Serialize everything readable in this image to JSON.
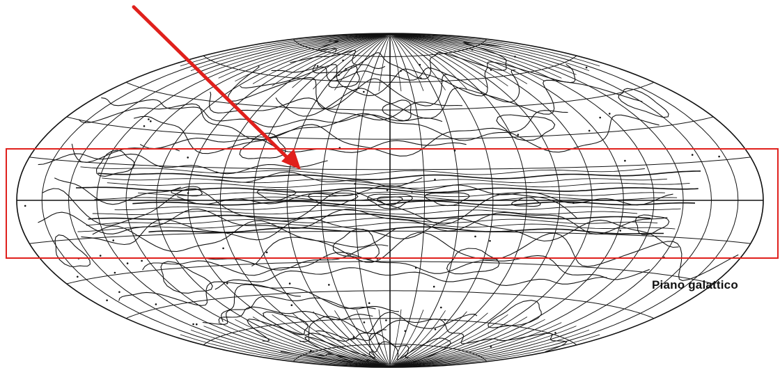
{
  "figure": {
    "projection": "aitoff-hammer",
    "label": "Piano galattico",
    "colors": {
      "background": "#ffffff",
      "linework": "#111111",
      "highlight_box": "#e0201c",
      "arrow": "#e0201c"
    },
    "icons": {
      "arrow": "arrow-icon",
      "band": "galactic-plane-band"
    }
  }
}
